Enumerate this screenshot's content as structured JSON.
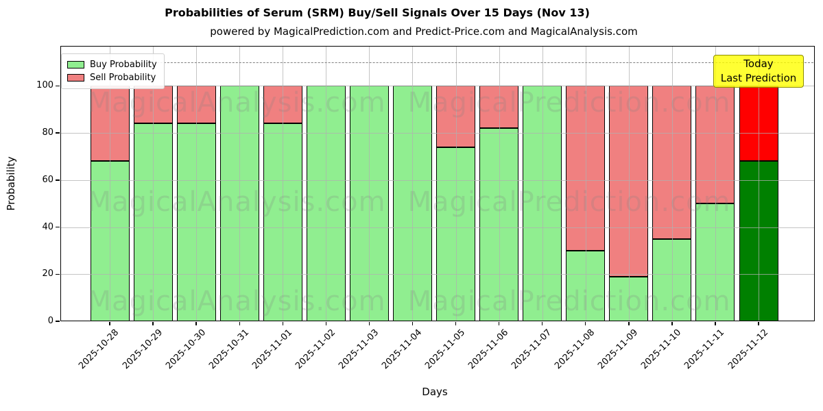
{
  "title": "Probabilities of Serum (SRM) Buy/Sell Signals Over 15 Days (Nov 13)",
  "subtitle": "powered by MagicalPrediction.com and Predict-Price.com and MagicalAnalysis.com",
  "legend": {
    "buy_label": "Buy Probability",
    "sell_label": "Sell Probability"
  },
  "annotation": {
    "line1": "Today",
    "line2": "Last Prediction"
  },
  "watermarks": {
    "left": "MagicalAnalysis.com",
    "right": "MagicalPrediction.com"
  },
  "axes": {
    "xlabel": "Days",
    "ylabel": "Probability",
    "yticks": [
      0,
      20,
      40,
      60,
      80,
      100
    ]
  },
  "colors": {
    "buy": "#90ee90",
    "sell": "#f08080",
    "buy_today": "#008000",
    "sell_today": "#ff0000",
    "bar_edge": "#000000",
    "annotation_bg": "#ffff00",
    "annotation_border": "#8b8b00",
    "grid": "#b0b0b0",
    "dashed_line": "#7f7f7f",
    "watermark": "#808080"
  },
  "chart_data": {
    "type": "bar",
    "stacked": true,
    "title": "Probabilities of Serum (SRM) Buy/Sell Signals Over 15 Days (Nov 13)",
    "xlabel": "Days",
    "ylabel": "Probability",
    "ylim": [
      0,
      117
    ],
    "dashed_line_y": 110,
    "grid": true,
    "legend_position": "upper left",
    "categories": [
      "2025-10-28",
      "2025-10-29",
      "2025-10-30",
      "2025-10-31",
      "2025-11-01",
      "2025-11-02",
      "2025-11-03",
      "2025-11-04",
      "2025-11-05",
      "2025-11-06",
      "2025-11-07",
      "2025-11-08",
      "2025-11-09",
      "2025-11-10",
      "2025-11-11",
      "2025-11-12"
    ],
    "series": [
      {
        "name": "Buy Probability",
        "values": [
          68,
          84,
          84,
          100,
          84,
          100,
          100,
          100,
          74,
          82,
          100,
          30,
          19,
          35,
          50,
          68
        ]
      },
      {
        "name": "Sell Probability",
        "values": [
          32,
          16,
          16,
          0,
          16,
          0,
          0,
          0,
          26,
          18,
          0,
          70,
          81,
          65,
          50,
          32
        ]
      }
    ],
    "today_index": 15,
    "today_label": "Today\nLast Prediction"
  }
}
